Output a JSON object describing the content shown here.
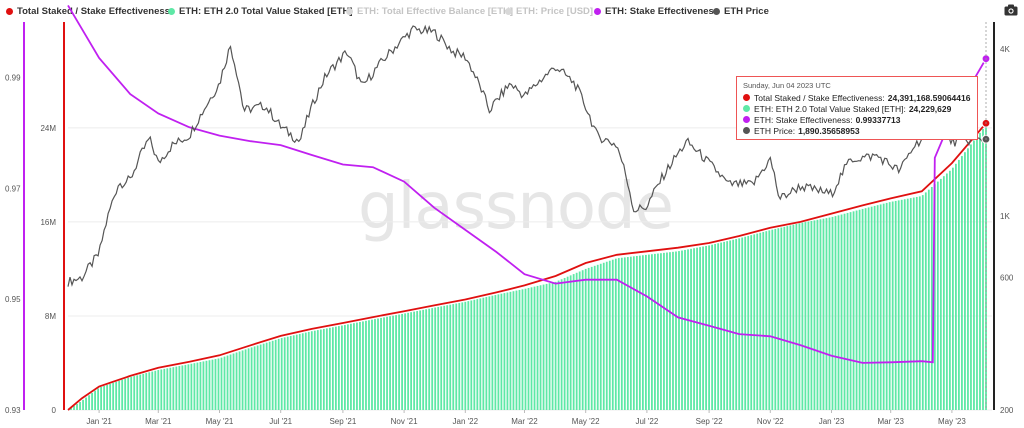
{
  "legend": [
    {
      "label": "Total Staked / Stake Effectiveness",
      "color": "#e01010",
      "active": true
    },
    {
      "label": "ETH: ETH 2.0 Total Value Staked [ETH]",
      "color": "#5ee8a6",
      "active": true
    },
    {
      "label": "ETH: Total Effective Balance [ETH]",
      "color": "#e01010",
      "active": false
    },
    {
      "label": "ETH: Price [USD]",
      "color": "#333333",
      "active": false
    },
    {
      "label": "ETH: Stake Effectiveness",
      "color": "#c020f0",
      "active": true
    },
    {
      "label": "ETH Price",
      "color": "#555555",
      "active": true
    }
  ],
  "watermark": "glassnode",
  "camera_icon": "camera-icon",
  "tooltip": {
    "date": "Sunday, Jun 04 2023 UTC",
    "rows": [
      {
        "label": "Total Staked / Stake Effectiveness:",
        "value": "24,391,168.59064416",
        "color": "#e01010"
      },
      {
        "label": "ETH: ETH 2.0 Total Value Staked [ETH]:",
        "value": "24,229,629",
        "color": "#5ee8a6"
      },
      {
        "label": "ETH: Stake Effectiveness:",
        "value": "0.99337713",
        "color": "#c020f0"
      },
      {
        "label": "ETH Price:",
        "value": "1,890.35658953",
        "color": "#555555"
      }
    ]
  },
  "chart_data": {
    "type": "line",
    "x_tick_labels": [
      "Jan '21",
      "Mar '21",
      "May '21",
      "Jul '21",
      "Sep '21",
      "Nov '21",
      "Jan '22",
      "Mar '22",
      "May '22",
      "Jul '22",
      "Sep '22",
      "Nov '22",
      "Jan '23",
      "Mar '23",
      "May '23"
    ],
    "x_range": [
      "2020-12-01",
      "2023-06-04"
    ],
    "axes": {
      "stake_effectiveness": {
        "ticks": [
          "0.93",
          "0.95",
          "0.97",
          "0.99"
        ],
        "range": [
          0.93,
          1.0
        ],
        "color": "#c020f0"
      },
      "staked_eth": {
        "ticks": [
          "0",
          "8M",
          "16M",
          "24M"
        ],
        "range": [
          0,
          33000000
        ],
        "color": "#e01010"
      },
      "price_usd": {
        "ticks": [
          "200",
          "600",
          "1K",
          "4K"
        ],
        "scale": "log",
        "range": [
          200,
          5000
        ]
      }
    },
    "series": [
      {
        "name": "Total Staked / Stake Effectiveness",
        "axis": "staked_eth",
        "color": "#e01010",
        "points": [
          [
            "2020-12-01",
            0
          ],
          [
            "2020-12-15",
            1000000
          ],
          [
            "2021-01-01",
            2000000
          ],
          [
            "2021-02-01",
            2900000
          ],
          [
            "2021-03-01",
            3600000
          ],
          [
            "2021-04-01",
            4100000
          ],
          [
            "2021-05-01",
            4650000
          ],
          [
            "2021-06-01",
            5500000
          ],
          [
            "2021-07-01",
            6300000
          ],
          [
            "2021-08-01",
            6900000
          ],
          [
            "2021-09-01",
            7400000
          ],
          [
            "2021-10-01",
            7900000
          ],
          [
            "2021-11-01",
            8400000
          ],
          [
            "2021-12-01",
            8900000
          ],
          [
            "2022-01-01",
            9400000
          ],
          [
            "2022-02-01",
            10000000
          ],
          [
            "2022-03-01",
            10600000
          ],
          [
            "2022-04-01",
            11400000
          ],
          [
            "2022-05-01",
            12500000
          ],
          [
            "2022-06-01",
            13200000
          ],
          [
            "2022-07-01",
            13500000
          ],
          [
            "2022-08-01",
            13800000
          ],
          [
            "2022-09-01",
            14200000
          ],
          [
            "2022-10-01",
            14800000
          ],
          [
            "2022-11-01",
            15500000
          ],
          [
            "2022-12-01",
            16000000
          ],
          [
            "2023-01-01",
            16700000
          ],
          [
            "2023-02-01",
            17400000
          ],
          [
            "2023-03-01",
            18000000
          ],
          [
            "2023-04-01",
            18600000
          ],
          [
            "2023-05-01",
            21000000
          ],
          [
            "2023-06-04",
            24391168.59
          ]
        ]
      },
      {
        "name": "ETH: ETH 2.0 Total Value Staked [ETH]",
        "axis": "staked_eth",
        "type": "bar",
        "color": "#5ee8a6",
        "points": [
          [
            "2020-12-01",
            0
          ],
          [
            "2020-12-15",
            800000
          ],
          [
            "2021-01-01",
            1900000
          ],
          [
            "2021-02-01",
            2800000
          ],
          [
            "2021-03-01",
            3400000
          ],
          [
            "2021-04-01",
            3900000
          ],
          [
            "2021-05-01",
            4400000
          ],
          [
            "2021-06-01",
            5300000
          ],
          [
            "2021-07-01",
            6100000
          ],
          [
            "2021-08-01",
            6700000
          ],
          [
            "2021-09-01",
            7200000
          ],
          [
            "2021-10-01",
            7700000
          ],
          [
            "2021-11-01",
            8200000
          ],
          [
            "2021-12-01",
            8700000
          ],
          [
            "2022-01-01",
            9200000
          ],
          [
            "2022-02-01",
            9800000
          ],
          [
            "2022-03-01",
            10300000
          ],
          [
            "2022-04-01",
            10900000
          ],
          [
            "2022-05-01",
            12000000
          ],
          [
            "2022-06-01",
            12900000
          ],
          [
            "2022-07-01",
            13200000
          ],
          [
            "2022-08-01",
            13500000
          ],
          [
            "2022-09-01",
            14000000
          ],
          [
            "2022-10-01",
            14600000
          ],
          [
            "2022-11-01",
            15300000
          ],
          [
            "2022-12-01",
            15900000
          ],
          [
            "2023-01-01",
            16400000
          ],
          [
            "2023-02-01",
            17100000
          ],
          [
            "2023-03-01",
            17700000
          ],
          [
            "2023-04-01",
            18200000
          ],
          [
            "2023-05-01",
            20500000
          ],
          [
            "2023-06-04",
            24229629
          ]
        ]
      },
      {
        "name": "ETH: Stake Effectiveness",
        "axis": "stake_effectiveness",
        "color": "#c020f0",
        "points": [
          [
            "2020-12-01",
            1.003
          ],
          [
            "2021-01-01",
            0.9935
          ],
          [
            "2021-02-01",
            0.987
          ],
          [
            "2021-03-01",
            0.9835
          ],
          [
            "2021-04-01",
            0.981
          ],
          [
            "2021-05-01",
            0.9795
          ],
          [
            "2021-06-01",
            0.9785
          ],
          [
            "2021-07-01",
            0.9778
          ],
          [
            "2021-08-01",
            0.976
          ],
          [
            "2021-09-01",
            0.9743
          ],
          [
            "2021-10-01",
            0.9738
          ],
          [
            "2021-11-01",
            0.9712
          ],
          [
            "2021-12-01",
            0.9665
          ],
          [
            "2022-01-01",
            0.9625
          ],
          [
            "2022-02-01",
            0.9585
          ],
          [
            "2022-03-01",
            0.9545
          ],
          [
            "2022-04-01",
            0.9528
          ],
          [
            "2022-05-01",
            0.9535
          ],
          [
            "2022-06-01",
            0.9535
          ],
          [
            "2022-07-01",
            0.9505
          ],
          [
            "2022-08-01",
            0.9467
          ],
          [
            "2022-09-01",
            0.9452
          ],
          [
            "2022-10-01",
            0.9437
          ],
          [
            "2022-11-01",
            0.9433
          ],
          [
            "2022-12-01",
            0.9417
          ],
          [
            "2023-01-01",
            0.9398
          ],
          [
            "2023-02-01",
            0.9385
          ],
          [
            "2023-03-01",
            0.9386
          ],
          [
            "2023-04-01",
            0.9388
          ],
          [
            "2023-04-12",
            0.9386
          ],
          [
            "2023-04-14",
            0.9755
          ],
          [
            "2023-05-01",
            0.9828
          ],
          [
            "2023-06-04",
            0.99337713
          ]
        ]
      },
      {
        "name": "ETH Price",
        "axis": "price_usd",
        "color": "#555555",
        "points": [
          [
            "2020-12-01",
            580
          ],
          [
            "2020-12-15",
            600
          ],
          [
            "2021-01-01",
            730
          ],
          [
            "2021-01-20",
            1300
          ],
          [
            "2021-02-01",
            1350
          ],
          [
            "2021-02-20",
            1900
          ],
          [
            "2021-03-01",
            1550
          ],
          [
            "2021-03-15",
            1800
          ],
          [
            "2021-04-01",
            1950
          ],
          [
            "2021-04-15",
            2400
          ],
          [
            "2021-05-01",
            3000
          ],
          [
            "2021-05-12",
            4100
          ],
          [
            "2021-05-25",
            2400
          ],
          [
            "2021-06-15",
            2500
          ],
          [
            "2021-07-01",
            2100
          ],
          [
            "2021-07-20",
            1850
          ],
          [
            "2021-08-15",
            3200
          ],
          [
            "2021-09-05",
            3900
          ],
          [
            "2021-09-20",
            2900
          ],
          [
            "2021-10-10",
            3600
          ],
          [
            "2021-11-10",
            4700
          ],
          [
            "2021-12-01",
            4600
          ],
          [
            "2021-12-20",
            3900
          ],
          [
            "2022-01-01",
            3750
          ],
          [
            "2022-01-25",
            2400
          ],
          [
            "2022-02-15",
            3000
          ],
          [
            "2022-03-01",
            2700
          ],
          [
            "2022-04-01",
            3450
          ],
          [
            "2022-04-20",
            3000
          ],
          [
            "2022-05-12",
            1950
          ],
          [
            "2022-06-01",
            1800
          ],
          [
            "2022-06-18",
            1050
          ],
          [
            "2022-07-01",
            1080
          ],
          [
            "2022-08-10",
            1850
          ],
          [
            "2022-09-01",
            1550
          ],
          [
            "2022-09-20",
            1300
          ],
          [
            "2022-10-15",
            1300
          ],
          [
            "2022-11-01",
            1600
          ],
          [
            "2022-11-10",
            1150
          ],
          [
            "2022-12-01",
            1280
          ],
          [
            "2023-01-01",
            1200
          ],
          [
            "2023-01-20",
            1600
          ],
          [
            "2023-02-15",
            1650
          ],
          [
            "2023-03-10",
            1450
          ],
          [
            "2023-03-25",
            1800
          ],
          [
            "2023-04-15",
            2100
          ],
          [
            "2023-05-01",
            1850
          ],
          [
            "2023-06-04",
            1890.36
          ]
        ]
      }
    ]
  }
}
